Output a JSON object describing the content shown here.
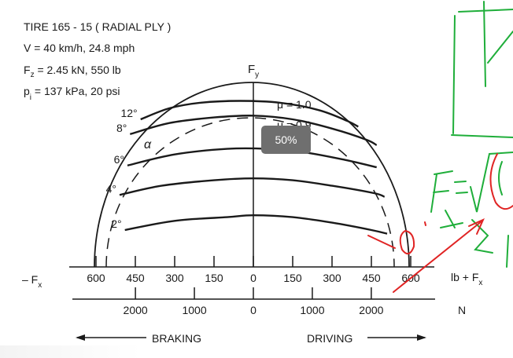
{
  "header": {
    "tire": "TIRE 165 - 15 ( RADIAL PLY )",
    "speed": "V = 40 km/h,  24.8 mph",
    "load_sym": "F",
    "load_sub": "z",
    "load_val": " = 2.45 kN,   550 lb",
    "pressure_sym": "p",
    "pressure_sub": "i",
    "pressure_val": " = 137 kPa,  20 psi"
  },
  "axes": {
    "fy_sym": "F",
    "fy_sub": "y",
    "left_sign": "– F",
    "left_sub": "x",
    "right_label": "lb  + F",
    "right_sub": "x",
    "n_unit": "N",
    "braking": "BRAKING",
    "driving": "DRIVING"
  },
  "chart_data": {
    "type": "line",
    "lb_ticks": [
      600,
      450,
      300,
      150,
      0,
      150,
      300,
      450,
      600
    ],
    "lb_tick_values": [
      -600,
      -450,
      -300,
      -150,
      0,
      150,
      300,
      450,
      600
    ],
    "n_ticks": [
      2000,
      1000,
      0,
      1000,
      2000
    ],
    "n_tick_values": [
      -2000,
      -1000,
      0,
      1000,
      2000
    ],
    "x_unit": "lb",
    "x_range": [
      -600,
      600
    ],
    "envelopes": [
      {
        "name": "μ = 1.0",
        "style": "solid"
      },
      {
        "name": "μ = 0.9",
        "style": "dashed"
      }
    ],
    "slip_label": "α",
    "series": [
      {
        "name": "12°",
        "points": [
          [
            -430,
            0.8
          ],
          [
            -320,
            0.86
          ],
          [
            -200,
            0.89
          ],
          [
            -50,
            0.9
          ],
          [
            100,
            0.89
          ],
          [
            250,
            0.85
          ],
          [
            360,
            0.79
          ],
          [
            400,
            0.76
          ]
        ]
      },
      {
        "name": "8°",
        "points": [
          [
            -470,
            0.72
          ],
          [
            -320,
            0.78
          ],
          [
            -150,
            0.81
          ],
          [
            0,
            0.82
          ],
          [
            150,
            0.8
          ],
          [
            300,
            0.75
          ],
          [
            430,
            0.69
          ],
          [
            470,
            0.66
          ]
        ]
      },
      {
        "name": "6°",
        "points": [
          [
            -480,
            0.55
          ],
          [
            -300,
            0.61
          ],
          [
            -100,
            0.64
          ],
          [
            50,
            0.64
          ],
          [
            200,
            0.62
          ],
          [
            350,
            0.58
          ],
          [
            470,
            0.54
          ]
        ]
      },
      {
        "name": "4°",
        "points": [
          [
            -510,
            0.39
          ],
          [
            -350,
            0.44
          ],
          [
            -150,
            0.47
          ],
          [
            0,
            0.48
          ],
          [
            150,
            0.47
          ],
          [
            300,
            0.44
          ],
          [
            460,
            0.4
          ],
          [
            500,
            0.38
          ]
        ]
      },
      {
        "name": "2°",
        "points": [
          [
            -490,
            0.2
          ],
          [
            -300,
            0.25
          ],
          [
            -100,
            0.27
          ],
          [
            0,
            0.28
          ],
          [
            150,
            0.27
          ],
          [
            300,
            0.24
          ],
          [
            450,
            0.2
          ],
          [
            510,
            0.18
          ]
        ]
      }
    ]
  },
  "annotations": {
    "zoom": "50%",
    "handwriting": "F = √ ... 0.4 F"
  }
}
